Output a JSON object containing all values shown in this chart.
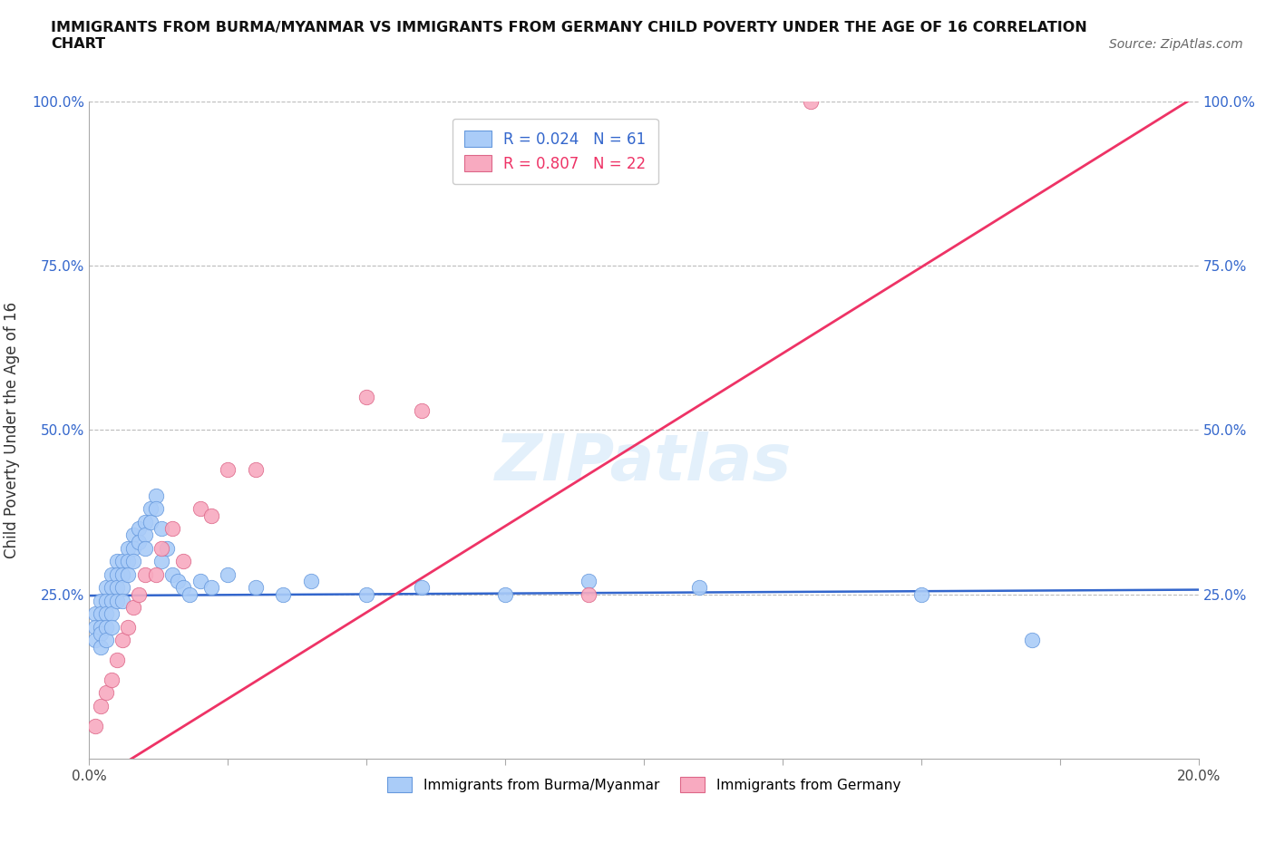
{
  "title": "IMMIGRANTS FROM BURMA/MYANMAR VS IMMIGRANTS FROM GERMANY CHILD POVERTY UNDER THE AGE OF 16 CORRELATION\nCHART",
  "source": "Source: ZipAtlas.com",
  "ylabel": "Child Poverty Under the Age of 16",
  "xlim": [
    0.0,
    0.2
  ],
  "ylim": [
    0.0,
    1.0
  ],
  "yticks": [
    0.0,
    0.25,
    0.5,
    0.75,
    1.0
  ],
  "xticks": [
    0.0,
    0.025,
    0.05,
    0.075,
    0.1,
    0.125,
    0.15,
    0.175,
    0.2
  ],
  "color_burma": "#aaccf8",
  "color_germany": "#f8aac0",
  "color_burma_line": "#3366cc",
  "color_germany_line": "#ee3366",
  "color_burma_edge": "#6699dd",
  "color_germany_edge": "#dd6688",
  "watermark": "ZIPatlas",
  "burma_x": [
    0.001,
    0.001,
    0.001,
    0.002,
    0.002,
    0.002,
    0.002,
    0.002,
    0.003,
    0.003,
    0.003,
    0.003,
    0.003,
    0.004,
    0.004,
    0.004,
    0.004,
    0.004,
    0.005,
    0.005,
    0.005,
    0.005,
    0.006,
    0.006,
    0.006,
    0.006,
    0.007,
    0.007,
    0.007,
    0.008,
    0.008,
    0.008,
    0.009,
    0.009,
    0.01,
    0.01,
    0.01,
    0.011,
    0.011,
    0.012,
    0.012,
    0.013,
    0.013,
    0.014,
    0.015,
    0.016,
    0.017,
    0.018,
    0.02,
    0.022,
    0.025,
    0.03,
    0.035,
    0.04,
    0.05,
    0.06,
    0.075,
    0.09,
    0.11,
    0.15,
    0.17
  ],
  "burma_y": [
    0.22,
    0.2,
    0.18,
    0.24,
    0.22,
    0.2,
    0.19,
    0.17,
    0.26,
    0.24,
    0.22,
    0.2,
    0.18,
    0.28,
    0.26,
    0.24,
    0.22,
    0.2,
    0.3,
    0.28,
    0.26,
    0.24,
    0.3,
    0.28,
    0.26,
    0.24,
    0.32,
    0.3,
    0.28,
    0.34,
    0.32,
    0.3,
    0.35,
    0.33,
    0.36,
    0.34,
    0.32,
    0.38,
    0.36,
    0.4,
    0.38,
    0.35,
    0.3,
    0.32,
    0.28,
    0.27,
    0.26,
    0.25,
    0.27,
    0.26,
    0.28,
    0.26,
    0.25,
    0.27,
    0.25,
    0.26,
    0.25,
    0.27,
    0.26,
    0.25,
    0.18
  ],
  "germany_x": [
    0.001,
    0.002,
    0.003,
    0.004,
    0.005,
    0.006,
    0.007,
    0.008,
    0.009,
    0.01,
    0.012,
    0.013,
    0.015,
    0.017,
    0.02,
    0.022,
    0.025,
    0.03,
    0.05,
    0.06,
    0.09,
    0.13
  ],
  "germany_y": [
    0.05,
    0.08,
    0.1,
    0.12,
    0.15,
    0.18,
    0.2,
    0.23,
    0.25,
    0.28,
    0.28,
    0.32,
    0.35,
    0.3,
    0.38,
    0.37,
    0.44,
    0.44,
    0.55,
    0.53,
    0.25,
    1.0
  ],
  "burma_trendline": [
    0.0,
    0.2,
    0.248,
    0.257
  ],
  "germany_trendline": [
    0.0,
    0.2,
    -0.04,
    1.01
  ]
}
